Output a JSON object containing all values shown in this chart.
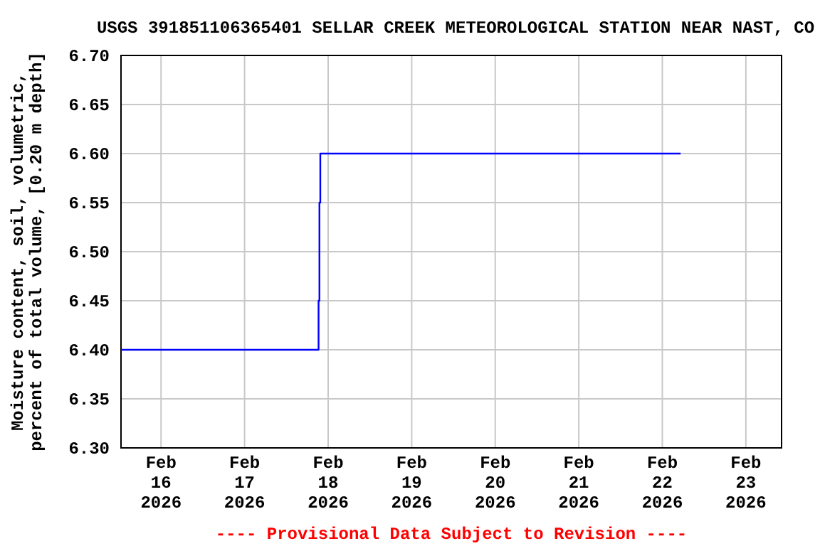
{
  "chart_data": {
    "type": "step",
    "title": "USGS 391851106365401 SELLAR CREEK METEOROLOGICAL STATION NEAR NAST, CO",
    "ylabel": "Moisture content, soil, volumetric,\npercent of total volume, [0.20 m depth]",
    "annotations": [
      "---- Provisional Data Subject to Revision ----"
    ],
    "x": [
      "2026-02-15T12:30",
      "2026-02-17T21:15",
      "2026-02-17T21:30",
      "2026-02-17T21:45",
      "2026-02-22T05:15"
    ],
    "series": [
      {
        "color": "#0000ff",
        "values": [
          6.4,
          6.45,
          6.55,
          6.6,
          6.6
        ]
      }
    ],
    "xlim": [
      "2026-02-15T12:30",
      "2026-02-23T10:15"
    ],
    "xticks": [
      {
        "value": "2026-02-16",
        "label": "Feb\n16\n2026"
      },
      {
        "value": "2026-02-17",
        "label": "Feb\n17\n2026"
      },
      {
        "value": "2026-02-18",
        "label": "Feb\n18\n2026"
      },
      {
        "value": "2026-02-19",
        "label": "Feb\n19\n2026"
      },
      {
        "value": "2026-02-20",
        "label": "Feb\n20\n2026"
      },
      {
        "value": "2026-02-21",
        "label": "Feb\n21\n2026"
      },
      {
        "value": "2026-02-22",
        "label": "Feb\n22\n2026"
      },
      {
        "value": "2026-02-23",
        "label": "Feb\n23\n2026"
      }
    ],
    "ylim": [
      6.3,
      6.7
    ],
    "yticks": [
      {
        "value": 6.3,
        "label": "6.30"
      },
      {
        "value": 6.35,
        "label": "6.35"
      },
      {
        "value": 6.4,
        "label": "6.40"
      },
      {
        "value": 6.45,
        "label": "6.45"
      },
      {
        "value": 6.5,
        "label": "6.50"
      },
      {
        "value": 6.55,
        "label": "6.55"
      },
      {
        "value": 6.6,
        "label": "6.60"
      },
      {
        "value": 6.65,
        "label": "6.65"
      },
      {
        "value": 6.7,
        "label": "6.70"
      }
    ],
    "grid": true
  }
}
